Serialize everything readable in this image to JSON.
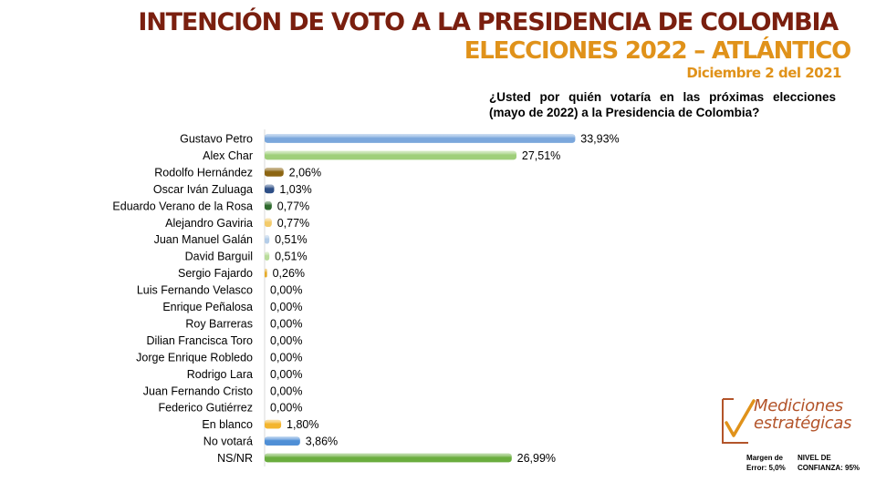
{
  "header": {
    "title": "INTENCIÓN DE VOTO A LA PRESIDENCIA DE COLOMBIA",
    "subtitle": "ELECCIONES 2022 – ATLÁNTICO",
    "date": "Diciembre 2 del 2021",
    "question": "¿Usted por quién votaría en las próximas elecciones (mayo de 2022) a la Presidencia de Colombia?"
  },
  "colors": {
    "title": "#7a1f0f",
    "subtitle": "#e0921a",
    "logo": "#b3542a"
  },
  "chart_data": {
    "type": "bar",
    "orientation": "horizontal",
    "categories": [
      "Gustavo Petro",
      "Alex Char",
      "Rodolfo Hernández",
      "Oscar Iván Zuluaga",
      "Eduardo Verano de la Rosa",
      "Alejandro Gaviria",
      "Juan Manuel Galán",
      "David Barguil",
      "Sergio Fajardo",
      "Luis Fernando Velasco",
      "Enrique Peñalosa",
      "Roy Barreras",
      "Dilian Francisca Toro",
      "Jorge Enrique Robledo",
      "Rodrigo Lara",
      "Juan Fernando Cristo",
      "Federico Gutiérrez",
      "En blanco",
      "No votará",
      "NS/NR"
    ],
    "values": [
      33.93,
      27.51,
      2.06,
      1.03,
      0.77,
      0.77,
      0.51,
      0.51,
      0.26,
      0,
      0,
      0,
      0,
      0,
      0,
      0,
      0,
      1.8,
      3.86,
      26.99
    ],
    "value_labels": [
      "33,93%",
      "27,51%",
      "2,06%",
      "1,03%",
      "0,77%",
      "0,77%",
      "0,51%",
      "0,51%",
      "0,26%",
      "0,00%",
      "0,00%",
      "0,00%",
      "0,00%",
      "0,00%",
      "0,00%",
      "0,00%",
      "0,00%",
      "1,80%",
      "3,86%",
      "26,99%"
    ],
    "bar_colors": [
      "#7ba7dc",
      "#9fcf7a",
      "#8c6512",
      "#2e4f86",
      "#2f6a2e",
      "#f3cb6b",
      "#b4cde8",
      "#b9dc9b",
      "#e6ac2c",
      "#5b9bd5",
      "#70ad47",
      "#5b9bd5",
      "#70ad47",
      "#5b9bd5",
      "#70ad47",
      "#5b9bd5",
      "#70ad47",
      "#f3b52f",
      "#4f8fd6",
      "#6aad3e"
    ],
    "xlim": [
      0,
      35
    ],
    "grid": false,
    "legend": "none",
    "title": "",
    "xlabel": "",
    "ylabel": ""
  },
  "logo": {
    "line1": "Mediciones",
    "line2": "estratégicas"
  },
  "footer": {
    "margin_line1": "Margen de",
    "margin_line2": "Error: 5,0%",
    "confidence_line1": "NIVEL DE",
    "confidence_line2": "CONFIANZA: 95%"
  }
}
